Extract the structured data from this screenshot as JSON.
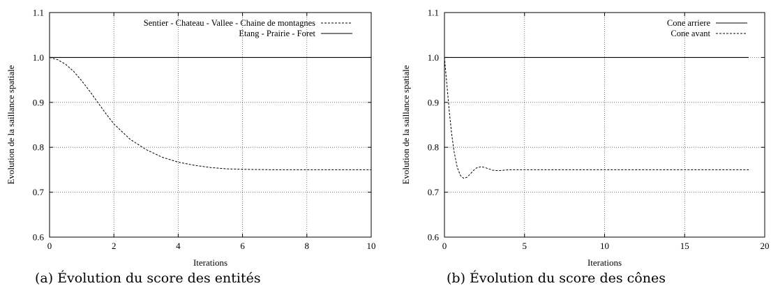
{
  "chart_data": [
    {
      "type": "line",
      "caption": "(a) Évolution du score des entités",
      "xlabel": "Iterations",
      "ylabel": "Evolution de la saillance spatiale",
      "xlim": [
        0,
        10
      ],
      "ylim": [
        0.6,
        1.1
      ],
      "xticks": [
        0,
        2,
        4,
        6,
        8,
        10
      ],
      "yticks": [
        0.6,
        0.7,
        0.8,
        0.9,
        1.0,
        1.1
      ],
      "xtick_labels": [
        "0",
        "2",
        "4",
        "6",
        "8",
        "10"
      ],
      "ytick_labels": [
        "0.6",
        "0.7",
        "0.8",
        "0.9",
        "1.0",
        "1.1"
      ],
      "grid": true,
      "legend_position": "top-right",
      "series": [
        {
          "name": "Sentier - Chateau - Vallee - Chaine de montagnes",
          "style": "dashed",
          "x": [
            0,
            0.25,
            0.5,
            0.75,
            1,
            1.25,
            1.5,
            1.75,
            2,
            2.5,
            3,
            3.5,
            4,
            4.5,
            5,
            5.5,
            6,
            7,
            8,
            9,
            10
          ],
          "y": [
            1.0,
            0.995,
            0.985,
            0.969,
            0.948,
            0.925,
            0.9,
            0.875,
            0.852,
            0.818,
            0.795,
            0.778,
            0.767,
            0.76,
            0.755,
            0.752,
            0.751,
            0.75,
            0.75,
            0.75,
            0.75
          ]
        },
        {
          "name": "Etang - Prairie - Foret",
          "style": "solid",
          "x": [
            0,
            10
          ],
          "y": [
            1.0,
            1.0
          ]
        }
      ]
    },
    {
      "type": "line",
      "caption": "(b) Évolution du score des cônes",
      "xlabel": "Iterations",
      "ylabel": "Evolution de la saillance spatiale",
      "xlim": [
        0,
        20
      ],
      "ylim": [
        0.6,
        1.1
      ],
      "xticks": [
        0,
        5,
        10,
        15,
        20
      ],
      "yticks": [
        0.6,
        0.7,
        0.8,
        0.9,
        1.0,
        1.1
      ],
      "xtick_labels": [
        "0",
        "5",
        "10",
        "15",
        "20"
      ],
      "ytick_labels": [
        "0.6",
        "0.7",
        "0.8",
        "0.9",
        "1.0",
        "1.1"
      ],
      "grid": true,
      "legend_position": "top-right",
      "series": [
        {
          "name": "Cone arriere",
          "style": "solid",
          "x": [
            0,
            19
          ],
          "y": [
            1.0,
            1.0
          ]
        },
        {
          "name": "Cone avant",
          "style": "dashed",
          "x": [
            0,
            0.1,
            0.2,
            0.3,
            0.45,
            0.6,
            0.8,
            1.0,
            1.2,
            1.4,
            1.6,
            1.8,
            2.0,
            2.3,
            2.6,
            3.0,
            3.4,
            4.0,
            5,
            6,
            8,
            10,
            12,
            15,
            19
          ],
          "y": [
            1.0,
            0.96,
            0.92,
            0.88,
            0.83,
            0.79,
            0.755,
            0.737,
            0.731,
            0.733,
            0.74,
            0.748,
            0.754,
            0.757,
            0.754,
            0.749,
            0.748,
            0.75,
            0.75,
            0.75,
            0.75,
            0.75,
            0.75,
            0.75,
            0.75
          ]
        }
      ]
    }
  ]
}
